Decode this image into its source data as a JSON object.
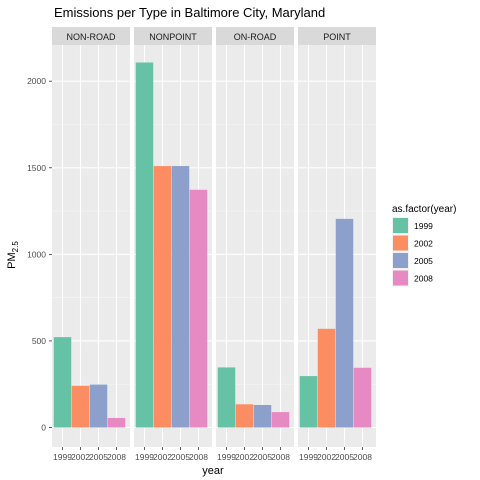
{
  "chart_data": {
    "type": "bar",
    "title": "Emissions per Type in Baltimore City, Maryland",
    "xlabel": "year",
    "ylabel_main": "PM",
    "ylabel_sub": "2.5",
    "ylim": [
      0,
      2200
    ],
    "yticks": [
      0,
      500,
      1000,
      1500,
      2000
    ],
    "categories": [
      "1999",
      "2002",
      "2005",
      "2008"
    ],
    "legend": {
      "title": "as.factor(year)",
      "position": "right",
      "entries": [
        "1999",
        "2002",
        "2005",
        "2008"
      ]
    },
    "colors": [
      "#66c2a5",
      "#fc8d62",
      "#8da0cb",
      "#e78ac3"
    ],
    "panels": [
      {
        "name": "NON-ROAD",
        "values": [
          522,
          241,
          248,
          55
        ]
      },
      {
        "name": "NONPOINT",
        "values": [
          2108,
          1510,
          1510,
          1373
        ]
      },
      {
        "name": "ON-ROAD",
        "values": [
          347,
          134,
          130,
          89
        ]
      },
      {
        "name": "POINT",
        "values": [
          297,
          570,
          1205,
          345
        ]
      }
    ],
    "grid": true
  }
}
